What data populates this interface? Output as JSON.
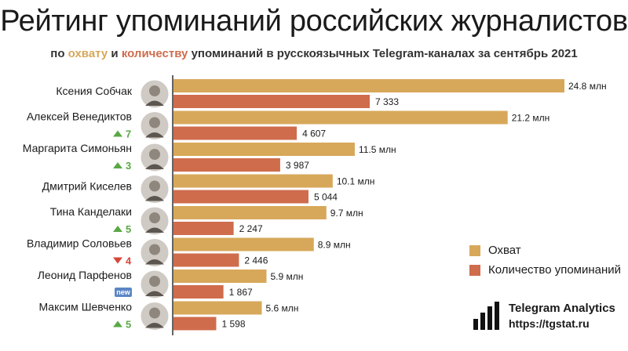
{
  "title": "Рейтинг упоминаний российских журналистов",
  "subtitle": {
    "prefix": "по",
    "reach": "охвату",
    "and": "и",
    "count": "количеству",
    "suffix": "упоминаний в русскоязычных Telegram-каналах за сентябрь 2021"
  },
  "legend": {
    "reach": "Охват",
    "count": "Количество упоминаний"
  },
  "colors": {
    "reach": "#d7a85a",
    "count": "#cf6c4c",
    "up": "#5aa845",
    "down": "#d9453a",
    "new": "#5b86c4"
  },
  "brand": {
    "title": "Telegram Analytics",
    "url": "https://tgstat.ru"
  },
  "chart_data": {
    "type": "bar",
    "orientation": "horizontal",
    "categories": [
      "Ксения Собчак",
      "Алексей Венедиктов",
      "Маргарита Симоньян",
      "Дмитрий Киселев",
      "Тина Канделаки",
      "Владимир Соловьев",
      "Леонид Парфенов",
      "Максим Шевченко"
    ],
    "series": [
      {
        "name": "Охват",
        "unit": "млн",
        "values": [
          24.8,
          21.2,
          11.5,
          10.1,
          9.7,
          8.9,
          5.9,
          5.6
        ],
        "labels": [
          "24.8 млн",
          "21.2 млн",
          "11.5 млн",
          "10.1 млн",
          "9.7 млн",
          "8.9 млн",
          "5.9 млн",
          "5.6 млн"
        ]
      },
      {
        "name": "Количество упоминаний",
        "values": [
          7333,
          4607,
          3987,
          5044,
          2247,
          2446,
          1867,
          1598
        ],
        "labels": [
          "7 333",
          "4 607",
          "3 987",
          "5 044",
          "2 247",
          "2 446",
          "1 867",
          "1 598"
        ]
      }
    ],
    "rank_changes": [
      null,
      {
        "dir": "up",
        "value": "7"
      },
      {
        "dir": "up",
        "value": "3"
      },
      null,
      {
        "dir": "up",
        "value": "5"
      },
      {
        "dir": "down",
        "value": "4"
      },
      {
        "dir": "new",
        "value": "new"
      },
      {
        "dir": "up",
        "value": "5"
      }
    ],
    "legend_position": "right",
    "grid": false
  }
}
